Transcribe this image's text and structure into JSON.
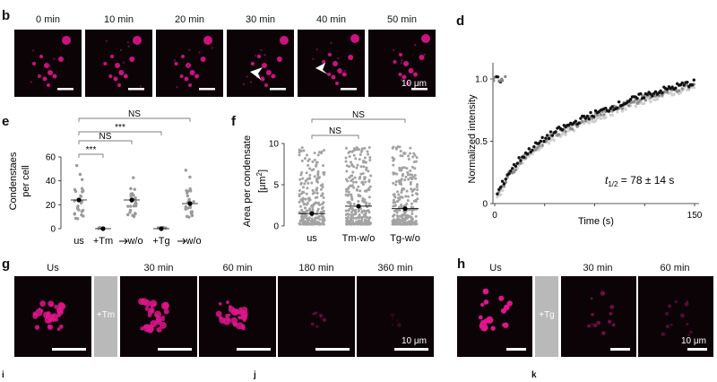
{
  "panel_b": {
    "label": "b",
    "timepoints": [
      "0 min",
      "10 min",
      "20 min",
      "30 min",
      "40 min",
      "50 min"
    ],
    "scalebar": "10 μm"
  },
  "panel_e": {
    "label": "e",
    "ylabel_line1": "Condenstaes",
    "ylabel_line2": "per cell",
    "yticks": [
      "0",
      "20",
      "40",
      "60"
    ],
    "categories": [
      "us",
      "+Tm",
      "w/o",
      "+Tg",
      "w/o"
    ],
    "sig": [
      "NS",
      "NS",
      "***",
      "***"
    ]
  },
  "panel_f": {
    "label": "f",
    "ylabel_line1": "Area per condensate",
    "ylabel_line2_pre": "[μm",
    "ylabel_line2_sup": "2",
    "ylabel_line2_post": "]",
    "yticks": [
      "0",
      "5",
      "10"
    ],
    "categories": [
      "us",
      "Tm-w/o",
      "Tg-w/o"
    ],
    "sig": [
      "NS",
      "NS"
    ]
  },
  "panel_d": {
    "label": "d",
    "ylabel": "Normalized intensity",
    "yticks": [
      "0",
      "0.5",
      "1.0"
    ],
    "xlabel": "Time (s)",
    "xticks": [
      "0",
      "150"
    ],
    "annotation_t": "t",
    "annotation_sub": "1/2",
    "annotation_rest": " = 78 ± 14 s"
  },
  "panel_g": {
    "label": "g",
    "timepoints": [
      "Us",
      "30 min",
      "60 min",
      "180 min",
      "360 min"
    ],
    "treatment": "+Tm",
    "scalebar": "10 μm"
  },
  "panel_h": {
    "label": "h",
    "timepoints": [
      "Us",
      "30 min",
      "60 min"
    ],
    "treatment": "+Tg",
    "scalebar": "10 μm"
  },
  "chart_data": [
    {
      "type": "scatter",
      "panel": "e",
      "title": "",
      "xlabel": "",
      "ylabel": "Condenstaes per cell",
      "ylim": [
        0,
        60
      ],
      "categories": [
        "us",
        "+Tm",
        "w/o",
        "+Tg",
        "w/o"
      ],
      "means": [
        24,
        0,
        24,
        0,
        21
      ],
      "significance": [
        {
          "from": "us",
          "to": "+Tm",
          "label": "***"
        },
        {
          "from": "us",
          "to": "w/o",
          "label": "NS"
        },
        {
          "from": "us",
          "to": "+Tg",
          "label": "***"
        },
        {
          "from": "us",
          "to": "w/o (Tg)",
          "label": "NS"
        }
      ]
    },
    {
      "type": "scatter",
      "panel": "f",
      "title": "",
      "xlabel": "",
      "ylabel": "Area per condensate [μm2]",
      "ylim": [
        0,
        10
      ],
      "categories": [
        "us",
        "Tm-w/o",
        "Tg-w/o"
      ],
      "means": [
        1.5,
        2.4,
        2.1
      ],
      "significance": [
        {
          "from": "us",
          "to": "Tm-w/o",
          "label": "NS"
        },
        {
          "from": "us",
          "to": "Tg-w/o",
          "label": "NS"
        }
      ]
    },
    {
      "type": "scatter",
      "panel": "d",
      "title": "",
      "xlabel": "Time (s)",
      "ylabel": "Normalized intensity",
      "xlim": [
        0,
        150
      ],
      "ylim": [
        0,
        1.05
      ],
      "prebleach_level": 1.0,
      "series": [
        {
          "name": "mean",
          "x": [
            0,
            5,
            10,
            20,
            30,
            40,
            50,
            60,
            70,
            80,
            90,
            100,
            110,
            120,
            130,
            140,
            150
          ],
          "y": [
            0.02,
            0.12,
            0.22,
            0.35,
            0.44,
            0.52,
            0.58,
            0.63,
            0.68,
            0.72,
            0.76,
            0.8,
            0.84,
            0.87,
            0.9,
            0.93,
            0.95
          ]
        }
      ],
      "annotation": "t1/2 = 78 ± 14 s"
    }
  ]
}
